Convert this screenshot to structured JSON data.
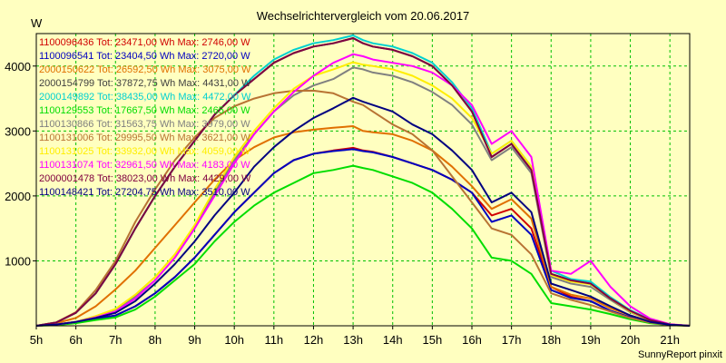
{
  "chart_data": {
    "type": "line",
    "title": "Wechselrichtervergleich vom 20.06.2017",
    "ylabel": "W",
    "xlabel": "",
    "footer": "SunnyReport pinxit",
    "grid": true,
    "xlim": [
      5,
      21.5
    ],
    "ylim": [
      0,
      4500
    ],
    "x_ticks": [
      5,
      6,
      7,
      8,
      9,
      10,
      11,
      12,
      13,
      14,
      15,
      16,
      17,
      18,
      19,
      20,
      21
    ],
    "x_tick_labels": [
      "5h",
      "6h",
      "7h",
      "8h",
      "9h",
      "10h",
      "11h",
      "12h",
      "13h",
      "14h",
      "15h",
      "16h",
      "17h",
      "18h",
      "19h",
      "20h",
      "21h"
    ],
    "y_ticks": [
      1000,
      2000,
      3000,
      4000
    ],
    "y_tick_labels": [
      "1000",
      "2000",
      "3000",
      "4000"
    ],
    "x": [
      5.0,
      5.5,
      6.0,
      6.5,
      7.0,
      7.5,
      8.0,
      8.5,
      9.0,
      9.5,
      10.0,
      10.5,
      11.0,
      11.5,
      12.0,
      12.5,
      13.0,
      13.25,
      13.5,
      14.0,
      14.5,
      15.0,
      15.5,
      16.0,
      16.5,
      17.0,
      17.5,
      18.0,
      18.5,
      19.0,
      19.5,
      20.0,
      20.5,
      21.0,
      21.5
    ],
    "series": [
      {
        "legend": "1100096436 Tot: 23471,00 Wh Max: 2746,00 W",
        "color": "#d00000",
        "values": [
          0,
          20,
          60,
          110,
          160,
          300,
          500,
          750,
          1050,
          1400,
          1750,
          2050,
          2350,
          2550,
          2650,
          2700,
          2740,
          2700,
          2680,
          2600,
          2500,
          2400,
          2250,
          2050,
          1700,
          1800,
          1500,
          600,
          450,
          380,
          230,
          130,
          60,
          20,
          0
        ]
      },
      {
        "legend": "1100096541 Tot: 23404,50 Wh Max: 2720,00 W",
        "color": "#0000c0",
        "values": [
          0,
          20,
          60,
          110,
          160,
          300,
          500,
          750,
          1050,
          1400,
          1750,
          2050,
          2350,
          2550,
          2650,
          2690,
          2720,
          2690,
          2670,
          2600,
          2500,
          2400,
          2250,
          2050,
          1600,
          1700,
          1400,
          550,
          430,
          380,
          230,
          130,
          60,
          20,
          0
        ]
      },
      {
        "legend": "2000150622 Tot: 26592,50 Wh Max: 3075,00 W",
        "color": "#e07000",
        "values": [
          0,
          40,
          120,
          300,
          560,
          850,
          1200,
          1550,
          1900,
          2250,
          2550,
          2750,
          2900,
          2980,
          3020,
          3050,
          3075,
          3000,
          2980,
          2950,
          2850,
          2700,
          2450,
          2150,
          1800,
          1950,
          1650,
          600,
          480,
          420,
          270,
          160,
          70,
          20,
          0
        ]
      },
      {
        "legend": "2000154799 Tot: 37872,75 Wh Max: 4431,00 W",
        "color": "#404040",
        "values": [
          0,
          50,
          200,
          500,
          950,
          1500,
          2000,
          2450,
          2850,
          3250,
          3550,
          3800,
          4050,
          4200,
          4300,
          4350,
          4431,
          4350,
          4300,
          4250,
          4150,
          4000,
          3700,
          3300,
          2600,
          2800,
          2400,
          800,
          700,
          650,
          420,
          230,
          90,
          20,
          0
        ]
      },
      {
        "legend": "2000149892 Tot: 38435,00 Wh Max: 4472,00 W",
        "color": "#00d0d0",
        "values": [
          0,
          50,
          200,
          500,
          950,
          1500,
          2000,
          2450,
          2850,
          3250,
          3550,
          3850,
          4100,
          4250,
          4350,
          4400,
          4472,
          4400,
          4350,
          4300,
          4200,
          4050,
          3750,
          3350,
          2650,
          2850,
          2450,
          850,
          720,
          680,
          440,
          240,
          95,
          20,
          0
        ]
      },
      {
        "legend": "1100129553 Tot: 17667,50 Wh Max: 2465,00 W",
        "color": "#00dd00",
        "values": [
          0,
          10,
          40,
          90,
          130,
          250,
          450,
          700,
          950,
          1300,
          1600,
          1850,
          2050,
          2200,
          2350,
          2400,
          2465,
          2430,
          2400,
          2300,
          2200,
          2050,
          1800,
          1500,
          1050,
          1000,
          800,
          350,
          300,
          250,
          180,
          100,
          40,
          10,
          0
        ]
      },
      {
        "legend": "1100130866 Tot: 31563,75 Wh Max: 3979,00 W",
        "color": "#808080",
        "values": [
          0,
          20,
          60,
          150,
          250,
          450,
          700,
          1050,
          1500,
          2050,
          2550,
          2950,
          3300,
          3550,
          3700,
          3800,
          3979,
          3950,
          3900,
          3850,
          3750,
          3600,
          3400,
          3100,
          2550,
          2750,
          2350,
          750,
          650,
          600,
          400,
          210,
          85,
          20,
          0
        ]
      },
      {
        "legend": "1100131006 Tot: 29995,50 Wh Max: 3621,00 W",
        "color": "#b87333",
        "values": [
          0,
          50,
          210,
          550,
          1000,
          1600,
          2100,
          2550,
          2900,
          3200,
          3380,
          3500,
          3580,
          3620,
          3621,
          3580,
          3450,
          3400,
          3300,
          3100,
          2950,
          2700,
          2300,
          1900,
          1500,
          1400,
          1100,
          500,
          400,
          320,
          220,
          120,
          50,
          10,
          0
        ]
      },
      {
        "legend": "1100131025 Tot: 33932,00 Wh Max: 4059,00 W",
        "color": "#ffee00",
        "values": [
          0,
          20,
          60,
          150,
          260,
          480,
          750,
          1100,
          1550,
          2100,
          2600,
          3000,
          3350,
          3650,
          3850,
          3950,
          4059,
          4020,
          4000,
          3950,
          3850,
          3700,
          3500,
          3200,
          2650,
          2850,
          2450,
          780,
          680,
          640,
          420,
          220,
          90,
          20,
          0
        ]
      },
      {
        "legend": "1100131074 Tot: 32961,50 Wh Max: 4183,00 W",
        "color": "#ff00ff",
        "values": [
          0,
          20,
          60,
          130,
          220,
          420,
          700,
          1050,
          1500,
          2000,
          2500,
          2950,
          3300,
          3600,
          3850,
          4050,
          4183,
          4150,
          4100,
          4050,
          4000,
          3900,
          3700,
          3400,
          2800,
          3000,
          2600,
          850,
          800,
          1000,
          600,
          300,
          110,
          25,
          0
        ]
      },
      {
        "legend": "2000001478 Tot: 38023,00 Wh Max: 4429,00 W",
        "color": "#800040",
        "values": [
          0,
          50,
          200,
          500,
          950,
          1500,
          2000,
          2450,
          2850,
          3250,
          3550,
          3800,
          4050,
          4200,
          4300,
          4350,
          4429,
          4350,
          4300,
          4250,
          4150,
          4000,
          3700,
          3300,
          2600,
          2800,
          2400,
          800,
          700,
          650,
          420,
          230,
          90,
          20,
          0
        ]
      },
      {
        "legend": "1100148421 Tot: 27204,75 Wh Max: 3510,00 W",
        "color": "#000080",
        "values": [
          0,
          20,
          60,
          120,
          200,
          380,
          650,
          950,
          1300,
          1700,
          2050,
          2450,
          2750,
          3000,
          3200,
          3350,
          3510,
          3450,
          3400,
          3300,
          3100,
          2950,
          2700,
          2400,
          1900,
          2050,
          1750,
          650,
          550,
          450,
          300,
          160,
          60,
          15,
          0
        ]
      }
    ]
  }
}
